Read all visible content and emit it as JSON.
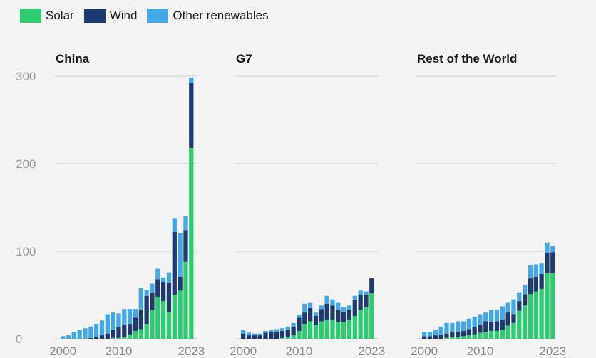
{
  "legend": [
    {
      "label": "Solar",
      "color": "#2ecc71"
    },
    {
      "label": "Wind",
      "color": "#1f3a6e"
    },
    {
      "label": "Other renewables",
      "color": "#45a8e6"
    }
  ],
  "chart_data": {
    "type": "bar",
    "stacked": true,
    "ylim": [
      0,
      300
    ],
    "yticks": [
      0,
      100,
      200,
      300
    ],
    "xticks": [
      "2000",
      "2010",
      "2023"
    ],
    "grid": true,
    "legend_position": "top-left",
    "years": [
      2000,
      2001,
      2002,
      2003,
      2004,
      2005,
      2006,
      2007,
      2008,
      2009,
      2010,
      2011,
      2012,
      2013,
      2014,
      2015,
      2016,
      2017,
      2018,
      2019,
      2020,
      2021,
      2022,
      2023
    ],
    "panels": [
      {
        "title": "China",
        "series": [
          {
            "name": "Solar",
            "values": [
              0,
              0,
              0,
              0,
              0,
              0,
              0,
              0,
              0,
              1,
              1,
              2,
              5,
              9,
              11,
              17,
              33,
              48,
              43,
              30,
              50,
              55,
              88,
              218
            ]
          },
          {
            "name": "Wind",
            "values": [
              0,
              0,
              0,
              0,
              0,
              1,
              2,
              4,
              6,
              9,
              12,
              14,
              12,
              15,
              22,
              32,
              20,
              20,
              22,
              34,
              72,
              16,
              36,
              74
            ]
          },
          {
            "name": "Other renewables",
            "values": [
              3,
              4,
              8,
              10,
              12,
              13,
              15,
              17,
              22,
              20,
              16,
              18,
              17,
              10,
              25,
              7,
              10,
              12,
              5,
              12,
              16,
              50,
              16,
              6
            ]
          }
        ]
      },
      {
        "title": "G7",
        "series": [
          {
            "name": "Solar",
            "values": [
              0,
              0,
              0,
              0,
              0,
              0,
              0,
              1,
              2,
              4,
              9,
              17,
              20,
              16,
              20,
              22,
              22,
              19,
              19,
              22,
              26,
              33,
              36,
              52
            ]
          },
          {
            "name": "Wind",
            "values": [
              6,
              4,
              4,
              4,
              7,
              8,
              8,
              8,
              8,
              10,
              15,
              13,
              15,
              10,
              14,
              18,
              16,
              14,
              12,
              11,
              18,
              17,
              14,
              17
            ]
          },
          {
            "name": "Other renewables",
            "values": [
              4,
              3,
              2,
              2,
              2,
              2,
              3,
              3,
              4,
              4,
              3,
              10,
              6,
              4,
              4,
              9,
              7,
              8,
              5,
              5,
              5,
              5,
              4,
              0
            ]
          }
        ]
      },
      {
        "title": "Rest of the World",
        "series": [
          {
            "name": "Solar",
            "values": [
              0,
              0,
              0,
              0,
              1,
              2,
              2,
              3,
              4,
              5,
              7,
              8,
              9,
              9,
              10,
              15,
              18,
              32,
              38,
              51,
              54,
              57,
              75,
              75
            ]
          },
          {
            "name": "Wind",
            "values": [
              3,
              3,
              4,
              5,
              5,
              6,
              6,
              6,
              7,
              8,
              9,
              12,
              10,
              11,
              12,
              15,
              10,
              11,
              13,
              18,
              17,
              17,
              23,
              24
            ]
          },
          {
            "name": "Other renewables",
            "values": [
              5,
              5,
              6,
              9,
              12,
              10,
              12,
              11,
              12,
              12,
              12,
              10,
              14,
              13,
              15,
              11,
              17,
              10,
              10,
              15,
              14,
              12,
              12,
              7
            ]
          }
        ]
      }
    ]
  }
}
